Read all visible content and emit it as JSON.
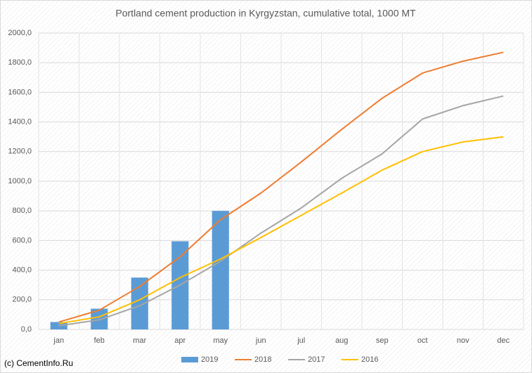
{
  "chart_data": {
    "type": "combo",
    "title": "Portland cement production in Kyrgyzstan, cumulative total, 1000 MT",
    "categories": [
      "jan",
      "feb",
      "mar",
      "apr",
      "may",
      "jun",
      "jul",
      "aug",
      "sep",
      "oct",
      "nov",
      "dec"
    ],
    "series": [
      {
        "name": "2019",
        "type": "bar",
        "color": "#5b9bd5",
        "values": [
          50,
          140,
          350,
          595,
          800,
          null,
          null,
          null,
          null,
          null,
          null,
          null
        ]
      },
      {
        "name": "2018",
        "type": "line",
        "color": "#ed7d31",
        "values": [
          50,
          130,
          290,
          490,
          740,
          920,
          1130,
          1350,
          1560,
          1730,
          1810,
          1870
        ]
      },
      {
        "name": "2017",
        "type": "line",
        "color": "#a5a5a5",
        "values": [
          25,
          65,
          160,
          300,
          460,
          650,
          820,
          1020,
          1185,
          1420,
          1510,
          1575
        ]
      },
      {
        "name": "2016",
        "type": "line",
        "color": "#ffc000",
        "values": [
          40,
          85,
          200,
          350,
          475,
          620,
          770,
          920,
          1075,
          1200,
          1265,
          1300
        ]
      }
    ],
    "ylim": [
      0,
      2000
    ],
    "yticks": [
      {
        "value": 0,
        "label": "0,0"
      },
      {
        "value": 200,
        "label": "200,0"
      },
      {
        "value": 400,
        "label": "400,0"
      },
      {
        "value": 600,
        "label": "600,0"
      },
      {
        "value": 800,
        "label": "800,0"
      },
      {
        "value": 1000,
        "label": "1000,0"
      },
      {
        "value": 1200,
        "label": "1200,0"
      },
      {
        "value": 1400,
        "label": "1400,0"
      },
      {
        "value": 1600,
        "label": "1600,0"
      },
      {
        "value": 1800,
        "label": "1800,0"
      },
      {
        "value": 2000,
        "label": "2000,0"
      }
    ],
    "grid": true,
    "legend": "bottom",
    "footer": "(c) CementInfo.Ru"
  }
}
